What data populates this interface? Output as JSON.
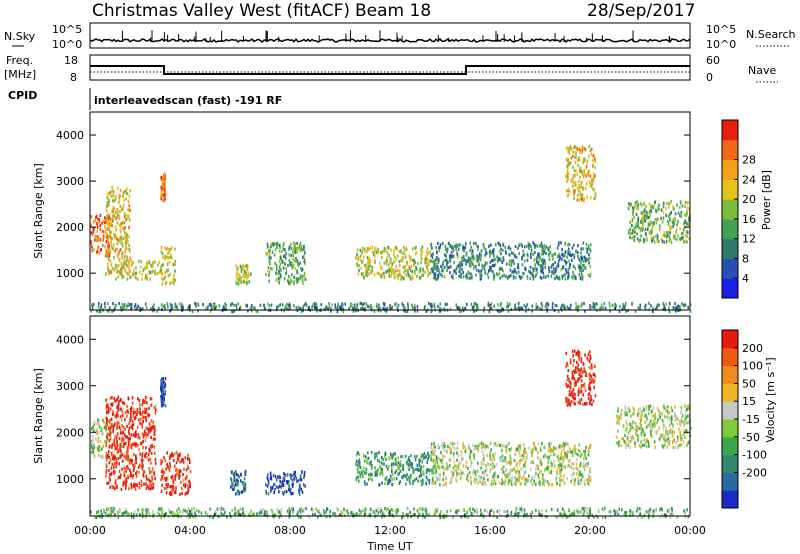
{
  "header": {
    "station": "Christmas Valley West (fitACF)",
    "beam": "Beam 18",
    "date": "28/Sep/2017"
  },
  "panels": {
    "nsky": {
      "label": "N.Sky",
      "left_ticks": [
        "10^5",
        "10^0"
      ],
      "right_ticks": [
        "10^5",
        "10^0"
      ],
      "right_label": "N.Search"
    },
    "freq": {
      "label_line1": "Freq.",
      "label_line2": "[MHz]",
      "left_ticks": [
        "18",
        "8"
      ],
      "right_ticks": [
        "60",
        "0"
      ],
      "right_label": "Nave"
    },
    "cpid": {
      "label": "CPID",
      "value": "interleavedscan (fast) -191 RF"
    }
  },
  "chart_data": [
    {
      "type": "heatmap",
      "name": "power",
      "xlabel": "",
      "ylabel": "Slant Range [km]",
      "x_ticks": [
        "00:00",
        "04:00",
        "08:00",
        "12:00",
        "16:00",
        "20:00",
        "00:00"
      ],
      "y_ticks": [
        1000,
        2000,
        3000,
        4000
      ],
      "ylim": [
        200,
        4500
      ],
      "colorbar": {
        "label": "Power [dB]",
        "ticks": [
          4,
          8,
          12,
          16,
          20,
          24,
          28
        ],
        "colors": [
          "#1a20e6",
          "#2850b4",
          "#2f7a6e",
          "#3fa353",
          "#7cbd3a",
          "#e0c21a",
          "#f5a01a",
          "#f06a14",
          "#e62010"
        ]
      },
      "features": [
        {
          "t": [
            0.0,
            0.8
          ],
          "r": [
            1400,
            2300
          ],
          "level": 0.85
        },
        {
          "t": [
            0.6,
            1.6
          ],
          "r": [
            1000,
            2900
          ],
          "level": 0.65
        },
        {
          "t": [
            1.0,
            2.8
          ],
          "r": [
            900,
            1300
          ],
          "level": 0.6
        },
        {
          "t": [
            2.8,
            3.4
          ],
          "r": [
            800,
            1600
          ],
          "level": 0.6
        },
        {
          "t": [
            2.8,
            3.0
          ],
          "r": [
            2600,
            3200
          ],
          "level": 0.8
        },
        {
          "t": [
            5.8,
            6.4
          ],
          "r": [
            800,
            1200
          ],
          "level": 0.55
        },
        {
          "t": [
            7.0,
            8.6
          ],
          "r": [
            800,
            1700
          ],
          "level": 0.4
        },
        {
          "t": [
            10.6,
            13.6
          ],
          "r": [
            900,
            1600
          ],
          "level": 0.55
        },
        {
          "t": [
            13.6,
            20.0
          ],
          "r": [
            900,
            1700
          ],
          "level": 0.3
        },
        {
          "t": [
            19.0,
            20.2
          ],
          "r": [
            2600,
            3800
          ],
          "level": 0.65
        },
        {
          "t": [
            21.5,
            24.0
          ],
          "r": [
            1700,
            2600
          ],
          "level": 0.45
        },
        {
          "t": [
            0.0,
            24.0
          ],
          "r": [
            200,
            380
          ],
          "level": 0.3
        }
      ]
    },
    {
      "type": "heatmap",
      "name": "velocity",
      "xlabel": "Time UT",
      "ylabel": "Slant Range [km]",
      "x_ticks": [
        "00:00",
        "04:00",
        "08:00",
        "12:00",
        "16:00",
        "20:00",
        "00:00"
      ],
      "y_ticks": [
        1000,
        2000,
        3000,
        4000
      ],
      "ylim": [
        200,
        4500
      ],
      "colorbar": {
        "label": "Velocity [m s⁻¹]",
        "ticks": [
          200,
          100,
          50,
          15,
          -15,
          -50,
          -100,
          -200
        ],
        "colors": [
          "#1a2cc8",
          "#2a6aa0",
          "#2e8a6a",
          "#3aa848",
          "#7ccc3c",
          "#c8c8c8",
          "#f0b428",
          "#f08a1e",
          "#ee5a14",
          "#e61a10"
        ]
      },
      "features": [
        {
          "t": [
            0.0,
            0.8
          ],
          "r": [
            1500,
            2300
          ],
          "level": 0.5
        },
        {
          "t": [
            0.6,
            2.6
          ],
          "r": [
            800,
            2800
          ],
          "level": 0.95
        },
        {
          "t": [
            2.8,
            4.0
          ],
          "r": [
            700,
            1600
          ],
          "level": 0.92
        },
        {
          "t": [
            2.8,
            3.0
          ],
          "r": [
            2600,
            3200
          ],
          "level": 0.1
        },
        {
          "t": [
            5.6,
            6.2
          ],
          "r": [
            700,
            1200
          ],
          "level": 0.15
        },
        {
          "t": [
            7.0,
            8.6
          ],
          "r": [
            700,
            1200
          ],
          "level": 0.12
        },
        {
          "t": [
            10.6,
            13.6
          ],
          "r": [
            900,
            1600
          ],
          "level": 0.3
        },
        {
          "t": [
            13.6,
            20.0
          ],
          "r": [
            900,
            1800
          ],
          "level": 0.5
        },
        {
          "t": [
            19.0,
            20.2
          ],
          "r": [
            2600,
            3800
          ],
          "level": 0.95
        },
        {
          "t": [
            21.0,
            24.0
          ],
          "r": [
            1700,
            2600
          ],
          "level": 0.5
        },
        {
          "t": [
            0.0,
            24.0
          ],
          "r": [
            200,
            400
          ],
          "level": 0.4
        }
      ]
    }
  ]
}
